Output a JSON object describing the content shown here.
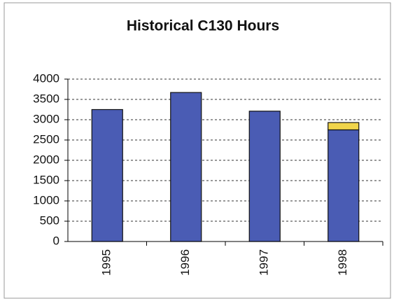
{
  "chart_data": {
    "type": "bar",
    "title": "Historical C130 Hours",
    "categories": [
      "1995",
      "1996",
      "1997",
      "1998"
    ],
    "series": [
      {
        "color": "#4a5cb4",
        "values": [
          3250,
          3670,
          3210,
          2750
        ]
      },
      {
        "color": "#f0d44a",
        "values": [
          null,
          null,
          null,
          180
        ]
      }
    ],
    "stacked": true,
    "ylim": [
      0,
      4000
    ],
    "yticks": [
      0,
      500,
      1000,
      1500,
      2000,
      2500,
      3000,
      3500,
      4000
    ],
    "grid": true
  }
}
